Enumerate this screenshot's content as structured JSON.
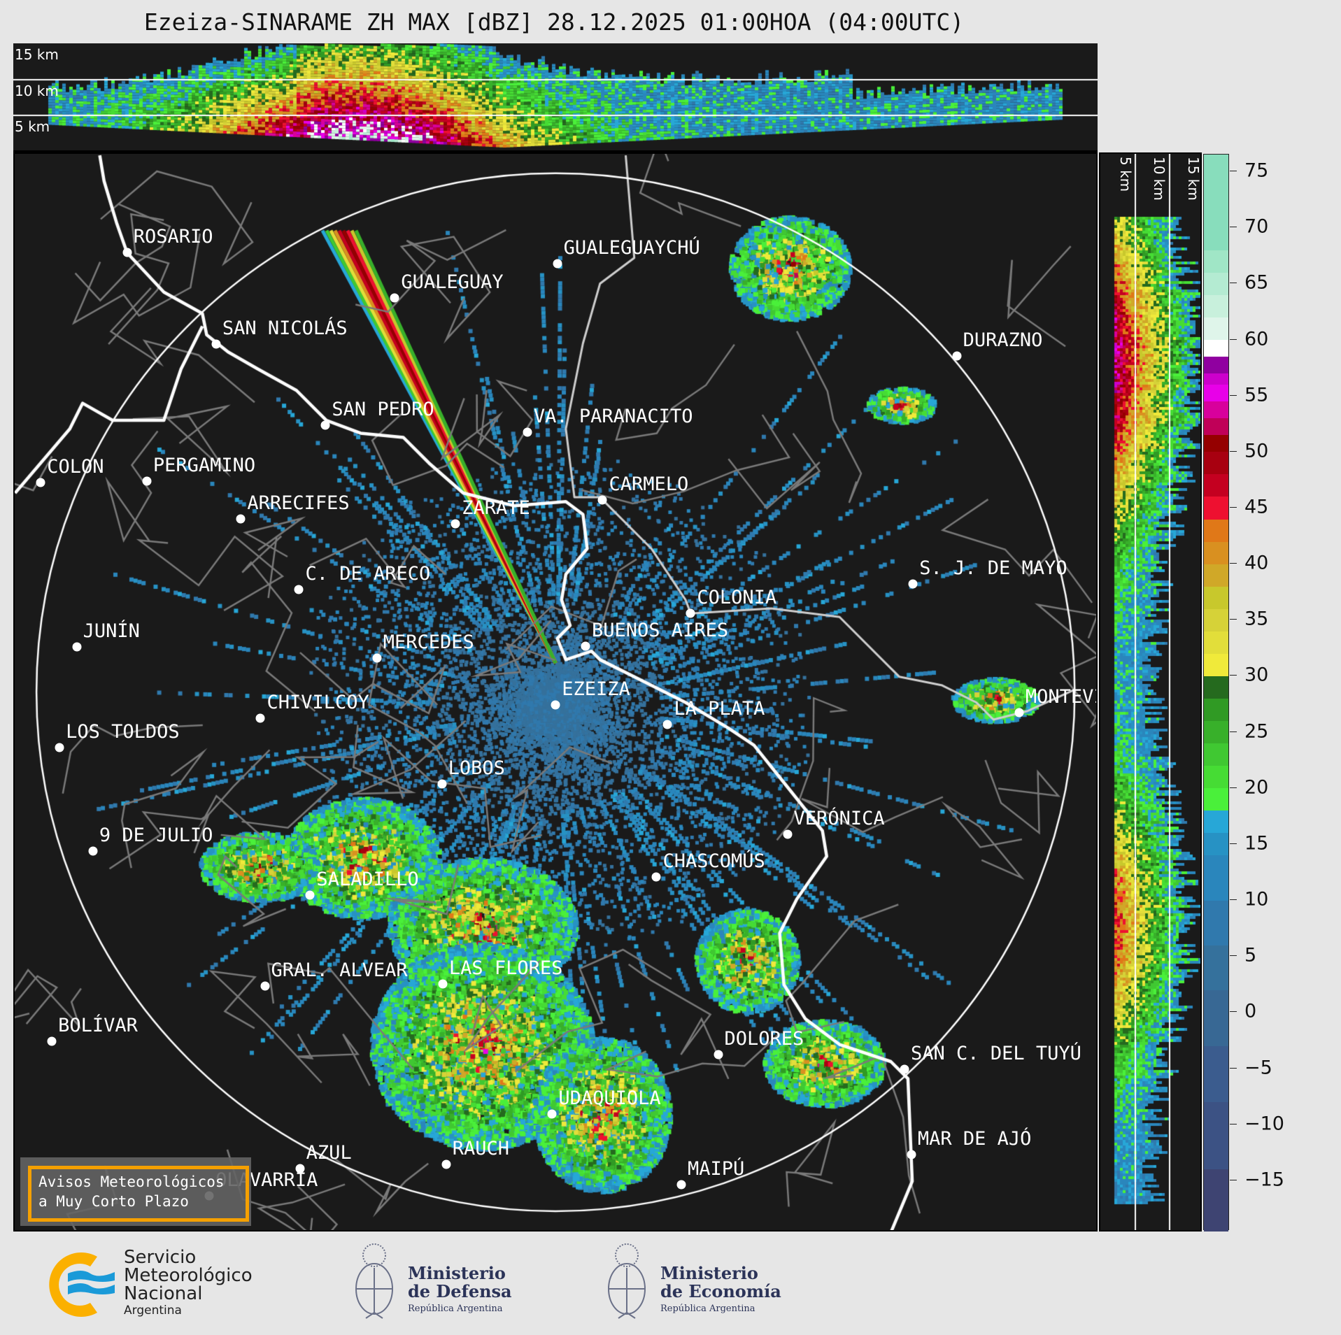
{
  "title": "Ezeiza-SINARAME ZH MAX [dBZ] 28.12.2025 01:00HOA (04:00UTC)",
  "top_section": {
    "height_labels": [
      "15 km",
      "10 km",
      "5 km"
    ]
  },
  "side_section": {
    "height_labels": [
      "5 km",
      "10 km",
      "15 km"
    ]
  },
  "colorbar": {
    "unit": "dBZ",
    "range": [
      -19.5,
      76.5
    ],
    "ticks": [
      "75",
      "70",
      "65",
      "60",
      "55",
      "50",
      "45",
      "40",
      "35",
      "30",
      "25",
      "20",
      "15",
      "10",
      "5",
      "0",
      "−5",
      "−10",
      "−15"
    ],
    "tick_values": [
      75,
      70,
      65,
      60,
      55,
      50,
      45,
      40,
      35,
      30,
      25,
      20,
      15,
      10,
      5,
      0,
      -5,
      -10,
      -15
    ],
    "stops": [
      [
        -19.5,
        -14,
        "#3e4472"
      ],
      [
        -14,
        -8,
        "#3c5284"
      ],
      [
        -8,
        -3,
        "#3b5c8e"
      ],
      [
        -3,
        2,
        "#386894"
      ],
      [
        2,
        6,
        "#35719c"
      ],
      [
        6,
        10,
        "#3079ad"
      ],
      [
        10,
        14,
        "#2a86bc"
      ],
      [
        14,
        16,
        "#2792c4"
      ],
      [
        16,
        18,
        "#27a7d7"
      ],
      [
        18,
        20,
        "#4af03a"
      ],
      [
        20,
        22,
        "#46dc34"
      ],
      [
        22,
        24,
        "#40c832"
      ],
      [
        24,
        26,
        "#38b02a"
      ],
      [
        26,
        28,
        "#309a24"
      ],
      [
        28,
        30,
        "#256a1e"
      ],
      [
        30,
        32,
        "#f0ea3a"
      ],
      [
        32,
        34,
        "#e2de3a"
      ],
      [
        34,
        36,
        "#d6d238"
      ],
      [
        36,
        38,
        "#c8c82c"
      ],
      [
        38,
        40,
        "#d0a828"
      ],
      [
        40,
        42,
        "#d99020"
      ],
      [
        42,
        44,
        "#e07818"
      ],
      [
        44,
        46,
        "#ee1030"
      ],
      [
        46,
        48,
        "#c40020"
      ],
      [
        48,
        50,
        "#a80010"
      ],
      [
        50,
        51.5,
        "#950000"
      ],
      [
        51.5,
        53,
        "#c00058"
      ],
      [
        53,
        54.5,
        "#d8009c"
      ],
      [
        54.5,
        56,
        "#e800e8"
      ],
      [
        56,
        57,
        "#cc00cc"
      ],
      [
        57,
        58.5,
        "#9000a0"
      ],
      [
        58.5,
        60,
        "#ffffff"
      ],
      [
        60,
        62,
        "#dff5ea"
      ],
      [
        62,
        64,
        "#c8f0dc"
      ],
      [
        64,
        66,
        "#b4ebd2"
      ],
      [
        66,
        68,
        "#a0e6c6"
      ],
      [
        68,
        76.5,
        "#88ddbc"
      ]
    ]
  },
  "cities": [
    "ROSARIO",
    "GUALEGUAY",
    "GUALEGUAYCHÚ",
    "SAN NICOLÁS",
    "DURAZNO",
    "SAN PEDRO",
    "VA. PARANACITO",
    "COLON",
    "PERGAMINO",
    "CARMELO",
    "ARRECIFES",
    "ZÁRATE",
    "C. DE ARECO",
    "S. J. DE MAYO",
    "COLONIA",
    "JUNÍN",
    "BUENOS AIRES",
    "MERCEDES",
    "MONTEVIDEO",
    "EZEIZA",
    "CHIVILCOY",
    "LA PLATA",
    "LOS TOLDOS",
    "LOBOS",
    "VERÓNICA",
    "9 DE JULIO",
    "CHASCOMÚS",
    "SALADILLO",
    "GRAL. ALVEAR",
    "LAS FLORES",
    "BOLÍVAR",
    "DOLORES",
    "SAN C. DEL TUYÚ",
    "UDAQUIOLA",
    "MAR DE AJÓ",
    "AZUL",
    "RAUCH",
    "MAIPÚ",
    "OLAVARRÍA"
  ],
  "warning_box": {
    "line1": "Avisos Meteorológicos",
    "line2": "a Muy Corto Plazo"
  },
  "logos": {
    "smn": [
      "Servicio",
      "Meteorológico",
      "Nacional",
      "Argentina"
    ],
    "defensa": [
      "Ministerio",
      "de Defensa",
      "República Argentina"
    ],
    "economia": [
      "Ministerio",
      "de Economía",
      "República Argentina"
    ]
  },
  "colors": {
    "background": "#e6e6e6",
    "map_background": "#1a1a1a",
    "warning_border": "#f5a000",
    "smn_orange": "#fbb000",
    "smn_blue": "#1a9ad8",
    "ministry_navy": "#2b3358"
  }
}
